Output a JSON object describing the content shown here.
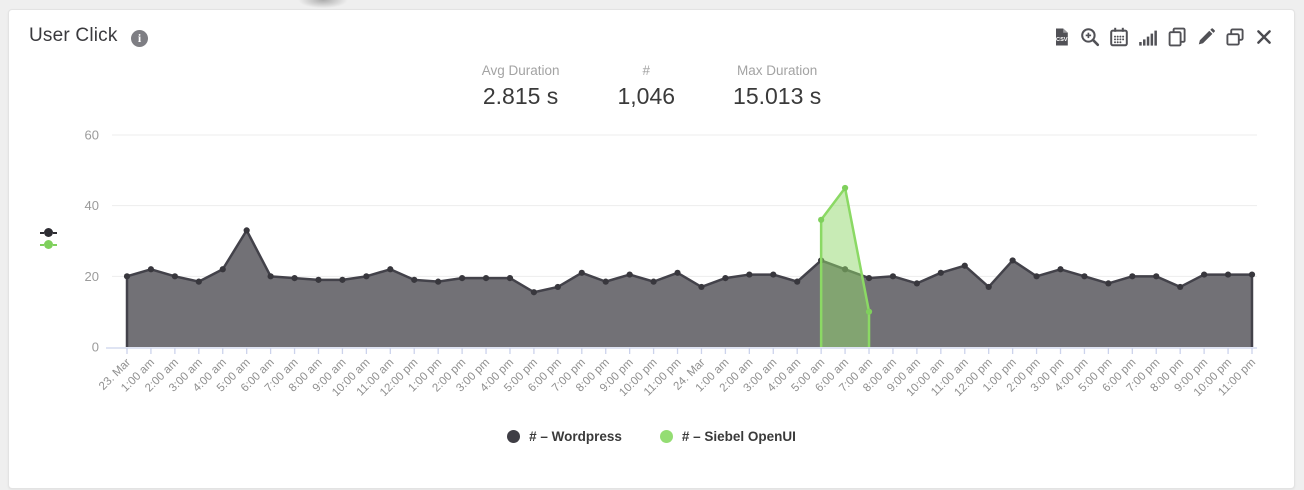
{
  "header": {
    "title": "User Click",
    "info_icon": "info"
  },
  "toolbar": {
    "icons": [
      "csv-export",
      "zoom-in",
      "calendar",
      "bar-chart",
      "copy",
      "edit",
      "restore-window",
      "close"
    ]
  },
  "stats": [
    {
      "label": "Avg Duration",
      "value": "2.815 s"
    },
    {
      "label": "#",
      "value": "1,046"
    },
    {
      "label": "Max Duration",
      "value": "15.013 s"
    }
  ],
  "legend": [
    {
      "label": "# – Wordpress",
      "color": "#3f3e45"
    },
    {
      "label": "# – Siebel OpenUI",
      "color": "#94dd73"
    }
  ],
  "colors": {
    "grid": "#ededed",
    "axis": "#ccd3ec",
    "y_label": "#9b9b9b",
    "x_label": "#8f8f8f",
    "icon": "#515156"
  },
  "chart_data": {
    "type": "area",
    "title": "User Click",
    "xlabel": "",
    "ylabel": "",
    "ylim": [
      0,
      60
    ],
    "y_ticks": [
      0,
      20,
      40,
      60
    ],
    "grid": "horizontal",
    "legend_position": "bottom",
    "x_labels": [
      "23. Mar",
      "1:00 am",
      "2:00 am",
      "3:00 am",
      "4:00 am",
      "5:00 am",
      "6:00 am",
      "7:00 am",
      "8:00 am",
      "9:00 am",
      "10:00 am",
      "11:00 am",
      "12:00 pm",
      "1:00 pm",
      "2:00 pm",
      "3:00 pm",
      "4:00 pm",
      "5:00 pm",
      "6:00 pm",
      "7:00 pm",
      "8:00 pm",
      "9:00 pm",
      "10:00 pm",
      "11:00 pm",
      "24. Mar",
      "1:00 am",
      "2:00 am",
      "3:00 am",
      "4:00 am",
      "5:00 am",
      "6:00 am",
      "7:00 am",
      "8:00 am",
      "9:00 am",
      "10:00 am",
      "11:00 am",
      "12:00 pm",
      "1:00 pm",
      "2:00 pm",
      "3:00 pm",
      "4:00 pm",
      "5:00 pm",
      "6:00 pm",
      "7:00 pm",
      "8:00 pm",
      "9:00 pm",
      "10:00 pm",
      "11:00 pm"
    ],
    "series": [
      {
        "name": "# – Wordpress",
        "color": "#43424a",
        "fill": "#727176",
        "bullet": "#38373d",
        "values": [
          20,
          22,
          20,
          18.5,
          22,
          33,
          20,
          19.5,
          19,
          19,
          20,
          22,
          19,
          18.5,
          19.5,
          19.5,
          19.5,
          15.5,
          17,
          21,
          18.5,
          20.5,
          18.5,
          21,
          17,
          19.5,
          20.5,
          20.5,
          18.5,
          24.5,
          22,
          19.5,
          20,
          18,
          21,
          23,
          17,
          24.5,
          20,
          22,
          20,
          18,
          20,
          20,
          17,
          20.5,
          20.5,
          20.5
        ]
      },
      {
        "name": "# – Siebel OpenUI",
        "color": "#8bd964",
        "fill": "rgba(145,216,108,0.5)",
        "bullet": "#7fd05c",
        "values": [
          null,
          null,
          null,
          null,
          null,
          null,
          null,
          null,
          null,
          null,
          null,
          null,
          null,
          null,
          null,
          null,
          null,
          null,
          null,
          null,
          null,
          null,
          null,
          null,
          null,
          null,
          null,
          null,
          null,
          36,
          45,
          10,
          null,
          null,
          null,
          null,
          null,
          null,
          null,
          null,
          null,
          null,
          null,
          null,
          null,
          null,
          null,
          null
        ]
      }
    ]
  }
}
